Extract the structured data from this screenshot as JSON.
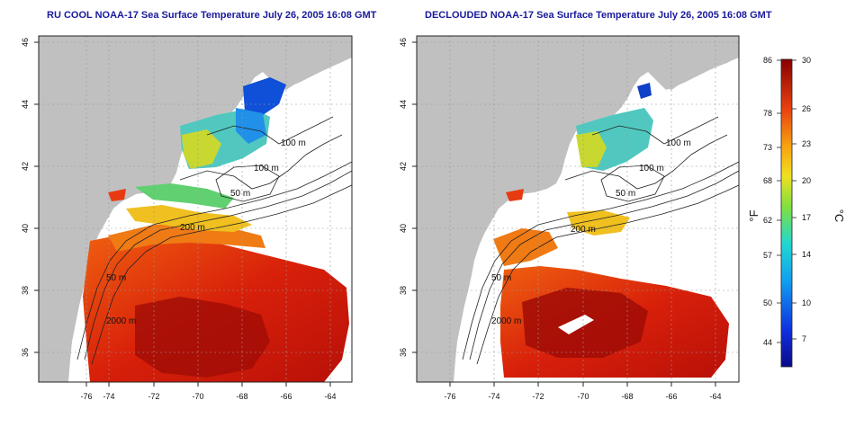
{
  "titles": {
    "left": "RU COOL NOAA-17 Sea Surface Temperature July 26, 2005 16:08 GMT",
    "right": "DECLOUDED NOAA-17 Sea Surface Temperature July 26, 2005 16:08 GMT"
  },
  "axes": {
    "lon_ticks": [
      "-76",
      "-74",
      "-72",
      "-70",
      "-68",
      "-66",
      "-64"
    ],
    "lat_ticks": [
      "46",
      "44",
      "42",
      "40",
      "38",
      "36"
    ]
  },
  "contour_labels": [
    "100 m",
    "100 m",
    "50 m",
    "200 m",
    "50 m",
    "2000 m"
  ],
  "colorbar": {
    "fahrenheit_unit": "°F",
    "celsius_unit": "°C",
    "fahrenheit_ticks": [
      "86",
      "78",
      "73",
      "68",
      "62",
      "57",
      "50",
      "44"
    ],
    "celsius_ticks": [
      "30",
      "26",
      "23",
      "20",
      "17",
      "14",
      "10",
      "7"
    ],
    "range_c": [
      4,
      30
    ]
  },
  "colors": {
    "land": "#c0c0c0",
    "title": "#1a1a9c",
    "warm": "#c8200a",
    "cool": "#1060d0"
  }
}
